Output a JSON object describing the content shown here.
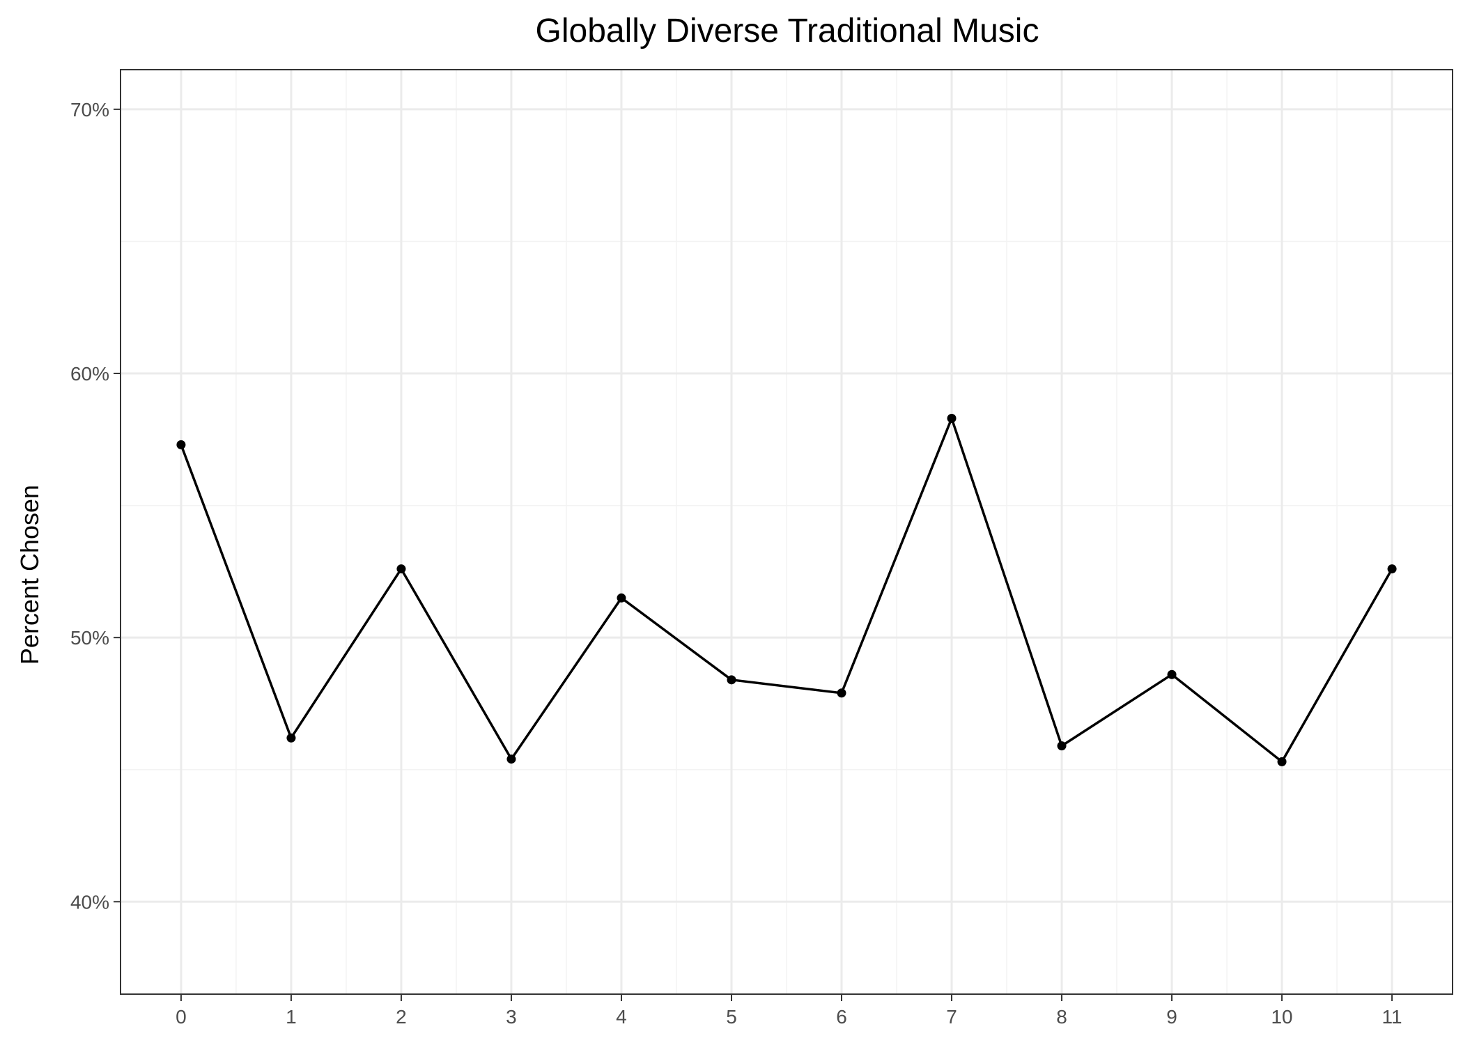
{
  "chart_data": {
    "type": "line",
    "title": "Globally Diverse Traditional Music",
    "xlabel": "",
    "ylabel": "Percent Chosen",
    "x": [
      0,
      1,
      2,
      3,
      4,
      5,
      6,
      7,
      8,
      9,
      10,
      11
    ],
    "x_tick_labels": [
      "0",
      "1",
      "2",
      "3",
      "4",
      "5",
      "6",
      "7",
      "8",
      "9",
      "10",
      "11"
    ],
    "series": [
      {
        "values": [
          57.3,
          46.2,
          52.6,
          45.4,
          51.5,
          48.4,
          47.9,
          58.3,
          45.9,
          48.6,
          45.3,
          52.6
        ]
      }
    ],
    "ylim": [
      36.5,
      71.5
    ],
    "xlim": [
      -0.55,
      11.55
    ],
    "y_ticks": [
      40,
      50,
      60,
      70
    ],
    "y_tick_labels": [
      "40%",
      "50%",
      "60%",
      "70%"
    ],
    "grid": true,
    "legend": "none",
    "colors": {
      "line": "#000000",
      "point": "#000000",
      "grid_major": "#ebebeb",
      "grid_minor": "#f3f3f3",
      "panel_border": "#333333"
    }
  }
}
